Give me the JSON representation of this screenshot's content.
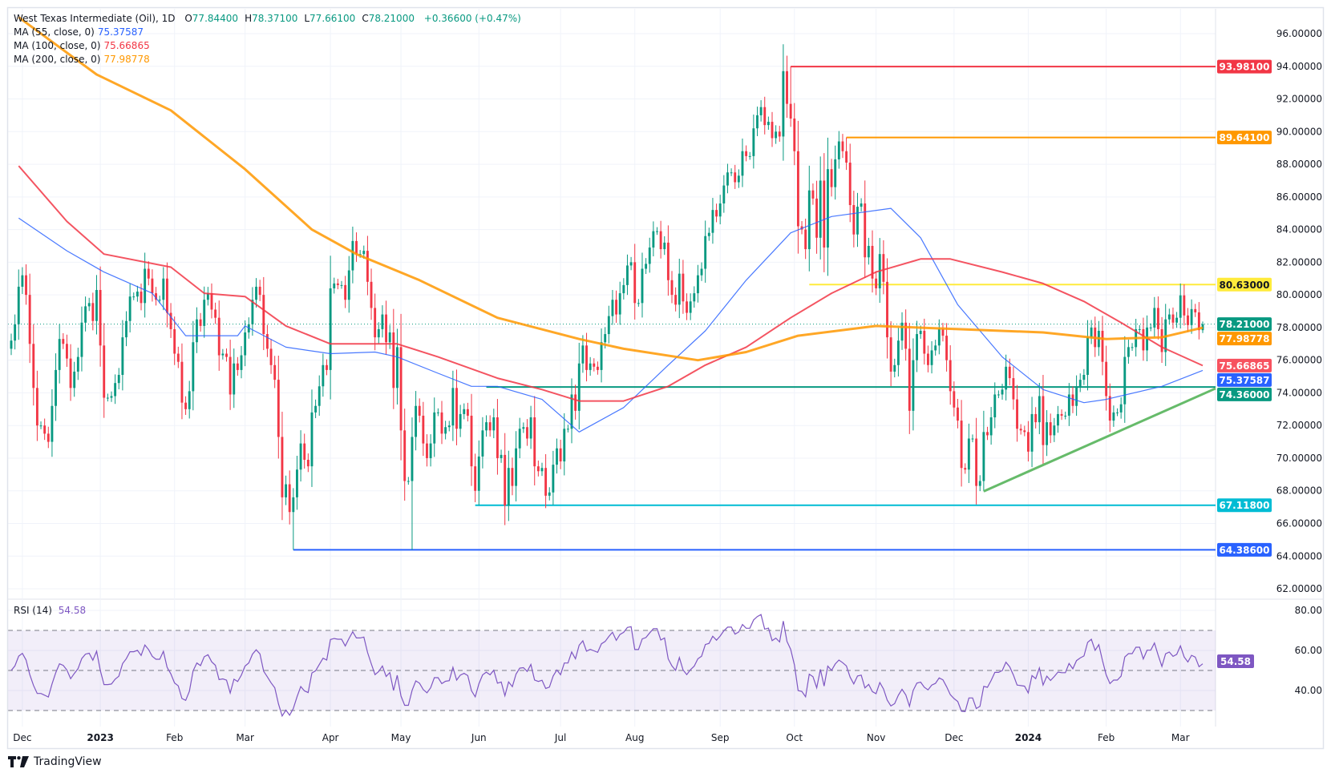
{
  "legend": {
    "title": "West Texas Intermediate (Oil), 1D",
    "ohlc": [
      {
        "key": "O",
        "value": "77.84400"
      },
      {
        "key": "H",
        "value": "78.37100"
      },
      {
        "key": "L",
        "value": "77.66100"
      },
      {
        "key": "C",
        "value": "78.21000"
      }
    ],
    "change": "+0.36600 (+0.47%)",
    "value_color": "#089981",
    "indicators": [
      {
        "label": "MA (55, close, 0)",
        "value": "75.37587",
        "color": "#2962ff"
      },
      {
        "label": "MA (100, close, 0)",
        "value": "75.66865",
        "color": "#f23645"
      },
      {
        "label": "MA (200, close, 0)",
        "value": "77.98778",
        "color": "#ff9800"
      }
    ]
  },
  "rsi_legend": {
    "label": "RSI (14)",
    "value": "54.58",
    "color": "#7e57c2"
  },
  "brand": {
    "name": "TradingView"
  },
  "chart_data": {
    "type": "candlestick",
    "symbol": "West Texas Intermediate (Oil)",
    "interval": "1D",
    "up_color": "#089981",
    "down_color": "#f23645",
    "ylim": [
      61.5,
      97.5
    ],
    "price_ticks": [
      "96.00000",
      "94.00000",
      "92.00000",
      "90.00000",
      "88.00000",
      "86.00000",
      "84.00000",
      "82.00000",
      "80.00000",
      "78.00000",
      "76.00000",
      "74.00000",
      "72.00000",
      "70.00000",
      "68.00000",
      "66.00000",
      "64.00000",
      "62.00000"
    ],
    "grid": true,
    "last_price": 78.21,
    "months": [
      {
        "key": "2022-11",
        "closes": [
          77.2,
          78.2,
          80.5
        ]
      },
      {
        "key": "2022-12",
        "label": "Dec",
        "closes": [
          81.2,
          80.0,
          77.0,
          74.3,
          72.0,
          72.0,
          71.5,
          71.0,
          73.2,
          75.4,
          77.3,
          77.0,
          76.1,
          74.3,
          75.3,
          76.2,
          78.3,
          79.3,
          79.5,
          78.4,
          80.3
        ]
      },
      {
        "key": "2023-01",
        "label": "2023",
        "closes": [
          76.9,
          73.7,
          73.7,
          73.8,
          74.6,
          75.1,
          77.4,
          78.4,
          79.9,
          79.9,
          80.2,
          79.5,
          81.6,
          81.0,
          80.1,
          79.7,
          79.7,
          81.0,
          78.9,
          77.9
        ]
      },
      {
        "key": "2023-02",
        "label": "Feb",
        "closes": [
          76.4,
          75.9,
          73.4,
          73.0,
          74.1,
          77.1,
          78.5,
          78.1,
          79.7,
          80.1,
          79.1,
          78.6,
          76.3,
          76.4,
          76.2,
          73.9,
          75.8,
          75.4,
          76.3
        ]
      },
      {
        "key": "2023-03",
        "label": "Mar",
        "closes": [
          77.7,
          78.2,
          79.7,
          80.5,
          80.0,
          77.6,
          76.7,
          75.7,
          74.8,
          71.3,
          67.6,
          68.4,
          66.7,
          67.6,
          69.3,
          70.9,
          69.9,
          69.5,
          72.8,
          73.2,
          74.4,
          75.7,
          75.4
        ]
      },
      {
        "key": "2023-04",
        "label": "Apr",
        "closes": [
          80.4,
          80.7,
          80.6,
          80.6,
          79.7,
          81.5,
          83.3,
          82.5,
          82.5,
          82.7,
          80.8,
          79.2,
          77.4,
          77.9,
          78.8,
          77.1,
          77.7,
          74.3,
          76.8
        ]
      },
      {
        "key": "2023-05",
        "label": "May",
        "closes": [
          71.7,
          68.6,
          68.6,
          71.3,
          73.2,
          72.6,
          70.9,
          70.0,
          70.9,
          72.8,
          72.8,
          71.5,
          71.9,
          72.0,
          74.3,
          71.8,
          72.7,
          73.0,
          72.6,
          69.5,
          68.0
        ]
      },
      {
        "key": "2023-06",
        "label": "Jun",
        "closes": [
          70.1,
          71.7,
          72.2,
          71.7,
          72.5,
          70.0,
          70.2,
          67.1,
          69.4,
          68.3,
          70.6,
          71.8,
          71.9,
          71.2,
          72.5,
          69.5,
          69.2,
          69.4,
          67.7,
          67.9,
          69.6,
          70.6
        ]
      },
      {
        "key": "2023-07",
        "label": "Jul",
        "closes": [
          69.8,
          71.8,
          71.8,
          73.9,
          72.9,
          75.8,
          76.9,
          75.4,
          75.8,
          75.6,
          75.4,
          77.1,
          77.6,
          78.7,
          79.7,
          78.8,
          80.1,
          80.6,
          81.8,
          82.0
        ]
      },
      {
        "key": "2023-08",
        "label": "Aug",
        "closes": [
          79.5,
          79.5,
          81.6,
          81.9,
          82.9,
          83.9,
          83.9,
          82.8,
          83.2,
          80.9,
          80.0,
          79.4,
          81.3,
          79.6,
          78.9,
          79.6,
          80.1,
          81.2,
          81.6,
          83.6,
          83.8,
          85.2,
          84.8
        ]
      },
      {
        "key": "2023-09",
        "label": "Sep",
        "closes": [
          85.6,
          86.7,
          87.5,
          87.5,
          86.9,
          87.3,
          88.8,
          88.5,
          88.5,
          90.2,
          91.0,
          91.5,
          90.4,
          90.6,
          89.6,
          90.0,
          89.7,
          93.7,
          91.7,
          90.8
        ]
      },
      {
        "key": "2023-10",
        "label": "Oct",
        "closes": [
          88.8,
          84.2,
          84.0,
          82.8,
          86.4,
          85.9,
          83.5,
          87.0,
          82.9,
          87.7,
          86.6,
          88.3,
          89.4,
          88.8,
          88.1,
          85.5,
          83.7,
          85.4,
          85.6,
          82.3,
          83.0,
          81.0
        ]
      },
      {
        "key": "2023-11",
        "label": "Nov",
        "closes": [
          80.4,
          82.5,
          80.8,
          77.4,
          75.3,
          75.7,
          77.2,
          78.3,
          76.7,
          72.9,
          76.0,
          77.6,
          77.8,
          76.4,
          75.7,
          76.6,
          76.9,
          77.9,
          77.5,
          76.0,
          74.1
        ]
      },
      {
        "key": "2023-12",
        "label": "Dec",
        "closes": [
          73.1,
          72.3,
          69.4,
          69.3,
          71.2,
          71.2,
          68.3,
          68.6,
          71.6,
          71.4,
          72.5,
          73.9,
          73.9,
          74.2,
          75.6,
          74.9,
          73.6,
          71.8,
          71.7,
          71.6
        ]
      },
      {
        "key": "2024-01",
        "label": "2024",
        "closes": [
          70.4,
          72.7,
          72.2,
          73.8,
          70.8,
          72.2,
          71.4,
          72.0,
          72.7,
          72.6,
          72.6,
          73.9,
          73.2,
          74.4,
          74.8,
          75.1,
          77.4,
          78.0,
          76.8,
          77.8,
          75.9
        ]
      },
      {
        "key": "2024-02",
        "label": "Feb",
        "closes": [
          73.8,
          72.3,
          72.8,
          72.8,
          73.3,
          76.2,
          76.8,
          76.8,
          77.9,
          77.9,
          76.6,
          78.0,
          78.0,
          79.2,
          77.9,
          76.5,
          78.5,
          78.8,
          78.3,
          78.6
        ]
      },
      {
        "key": "2024-03",
        "label": "Mar",
        "closes": [
          79.97,
          78.74,
          78.15,
          79.13,
          78.93,
          77.84,
          78.21
        ]
      }
    ],
    "extremes": [
      {
        "date": "2023-03-20",
        "low": 64.386
      },
      {
        "date": "2023-05-04",
        "low": 64.386
      },
      {
        "date": "2023-09-28",
        "high": 93.981
      },
      {
        "date": "2023-10-20",
        "high": 89.641
      },
      {
        "date": "2023-12-13",
        "low": 67.97
      },
      {
        "date": "2024-03-11",
        "high": 78.371,
        "low": 77.661
      }
    ],
    "moving_averages": [
      {
        "name": "MA (55, close, 0)",
        "color": "#2962ff",
        "points": [
          [
            "2022-11-28",
            84.7
          ],
          [
            "2022-12-18",
            82.7
          ],
          [
            "2023-01-03",
            81.4
          ],
          [
            "2023-01-20",
            80.1
          ],
          [
            "2023-02-05",
            77.5
          ],
          [
            "2023-02-24",
            77.5
          ],
          [
            "2023-03-01",
            78.1
          ],
          [
            "2023-03-16",
            76.8
          ],
          [
            "2023-04-01",
            76.4
          ],
          [
            "2023-04-19",
            76.5
          ],
          [
            "2023-04-30",
            76.2
          ],
          [
            "2023-05-13",
            75.2
          ],
          [
            "2023-05-26",
            74.4
          ],
          [
            "2023-06-08",
            74.4
          ],
          [
            "2023-06-24",
            73.6
          ],
          [
            "2023-07-10",
            71.6
          ],
          [
            "2023-07-26",
            73.1
          ],
          [
            "2023-08-12",
            75.7
          ],
          [
            "2023-08-28",
            77.8
          ],
          [
            "2023-09-12",
            80.9
          ],
          [
            "2023-09-29",
            83.8
          ],
          [
            "2023-10-16",
            84.8
          ],
          [
            "2023-11-07",
            85.3
          ],
          [
            "2023-11-17",
            83.5
          ],
          [
            "2023-12-03",
            79.4
          ],
          [
            "2023-12-20",
            76.2
          ],
          [
            "2024-01-05",
            74.2
          ],
          [
            "2024-01-22",
            73.4
          ],
          [
            "2024-02-01",
            73.6
          ],
          [
            "2024-02-22",
            74.4
          ],
          [
            "2024-03-11",
            75.37587
          ]
        ]
      },
      {
        "name": "MA (100, close, 0)",
        "color": "#f23645",
        "points": [
          [
            "2022-11-28",
            87.9
          ],
          [
            "2022-12-18",
            84.5
          ],
          [
            "2023-01-03",
            82.5
          ],
          [
            "2023-01-27",
            81.7
          ],
          [
            "2023-02-13",
            80.1
          ],
          [
            "2023-03-01",
            79.9
          ],
          [
            "2023-03-16",
            78.1
          ],
          [
            "2023-04-01",
            77.0
          ],
          [
            "2023-04-19",
            77.0
          ],
          [
            "2023-04-30",
            77.0
          ],
          [
            "2023-05-13",
            76.2
          ],
          [
            "2023-06-08",
            74.9
          ],
          [
            "2023-06-24",
            74.2
          ],
          [
            "2023-07-10",
            73.5
          ],
          [
            "2023-07-26",
            73.5
          ],
          [
            "2023-08-12",
            74.4
          ],
          [
            "2023-08-28",
            75.7
          ],
          [
            "2023-09-12",
            76.8
          ],
          [
            "2023-09-29",
            78.6
          ],
          [
            "2023-10-16",
            80.1
          ],
          [
            "2023-11-01",
            81.4
          ],
          [
            "2023-11-17",
            82.2
          ],
          [
            "2023-11-30",
            82.2
          ],
          [
            "2023-12-20",
            81.4
          ],
          [
            "2024-01-05",
            80.7
          ],
          [
            "2024-01-22",
            79.6
          ],
          [
            "2024-02-07",
            78.3
          ],
          [
            "2024-02-22",
            76.8
          ],
          [
            "2024-03-11",
            75.66865
          ]
        ]
      },
      {
        "name": "MA (200, close, 0)",
        "color": "#ff9800",
        "points": [
          [
            "2022-11-28",
            97.0
          ],
          [
            "2022-12-30",
            93.5
          ],
          [
            "2023-01-27",
            91.3
          ],
          [
            "2023-03-01",
            87.7
          ],
          [
            "2023-03-25",
            84.0
          ],
          [
            "2023-04-12",
            82.5
          ],
          [
            "2023-05-07",
            80.9
          ],
          [
            "2023-06-08",
            78.6
          ],
          [
            "2023-07-10",
            77.3
          ],
          [
            "2023-07-26",
            76.7
          ],
          [
            "2023-08-24",
            76.0
          ],
          [
            "2023-09-12",
            76.5
          ],
          [
            "2023-10-03",
            77.5
          ],
          [
            "2023-11-01",
            78.1
          ],
          [
            "2023-12-03",
            77.9
          ],
          [
            "2024-01-05",
            77.7
          ],
          [
            "2024-02-01",
            77.3
          ],
          [
            "2024-02-22",
            77.4
          ],
          [
            "2024-03-11",
            77.98778
          ]
        ]
      }
    ],
    "horizontal_levels": [
      {
        "price": 93.981,
        "label": "93.98100",
        "from": "2023-09-28",
        "color": "#f23645",
        "text_color": "#ffffff"
      },
      {
        "price": 89.641,
        "label": "89.64100",
        "from": "2023-10-20",
        "color": "#ff9800",
        "text_color": "#ffffff"
      },
      {
        "price": 80.63,
        "label": "80.63000",
        "from": "2023-10-06",
        "color": "#ffeb3b",
        "text_color": "#131722"
      },
      {
        "price": 74.36,
        "label": "74.36000",
        "from": "2023-06-05",
        "color": "#089981",
        "text_color": "#ffffff"
      },
      {
        "price": 67.118,
        "label": "67.11800",
        "from": "2023-05-31",
        "color": "#00bcd4",
        "text_color": "#ffffff"
      },
      {
        "price": 64.386,
        "label": "64.38600",
        "from": "2023-03-20",
        "color": "#2962ff",
        "text_color": "#ffffff"
      }
    ],
    "trendline": {
      "color": "#66bb6a",
      "points": [
        [
          "2023-12-13",
          67.97
        ],
        [
          "2024-02-05",
          71.5
        ]
      ]
    },
    "axis_badges": [
      {
        "label": "78.21000",
        "price": 78.21,
        "color": "#089981",
        "text_color": "#ffffff"
      },
      {
        "label": "77.98778",
        "price": 77.98778,
        "color": "#ff9800",
        "text_color": "#ffffff"
      },
      {
        "label": "75.66865",
        "price": 75.66865,
        "color": "#f7525f",
        "text_color": "#ffffff"
      },
      {
        "label": "75.37587",
        "price": 75.37587,
        "color": "#2962ff",
        "text_color": "#ffffff"
      }
    ],
    "rsi": {
      "period": 14,
      "ylim": [
        25,
        85
      ],
      "ticks": [
        "80.00",
        "60.00",
        "40.00"
      ],
      "band": [
        30,
        70
      ],
      "color": "#7e57c2",
      "last_value": "54.58"
    }
  }
}
